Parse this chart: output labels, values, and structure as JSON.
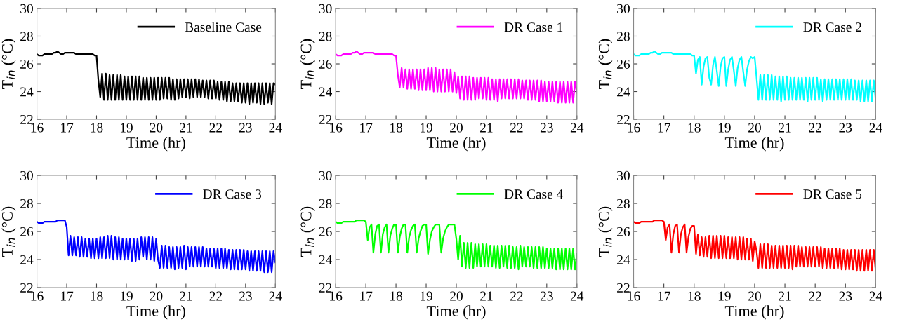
{
  "chart_data": [
    {
      "type": "line",
      "xlabel": "Time (hr)",
      "ylabel": "T$_{in}$ (°C)",
      "xlim": [
        16,
        24
      ],
      "ylim": [
        22,
        30
      ],
      "xticks": [
        16,
        17,
        18,
        19,
        20,
        21,
        22,
        23,
        24
      ],
      "yticks": [
        22,
        24,
        26,
        28,
        30
      ],
      "grid": false,
      "legend": "top right",
      "x": [
        16,
        16.0625,
        16.125,
        16.1875,
        16.25,
        16.3125,
        16.375,
        16.4375,
        16.5,
        16.5625,
        16.625,
        16.6875,
        16.75,
        16.8125,
        16.875,
        16.9375,
        17,
        17.0625,
        17.125,
        17.1875,
        17.25,
        17.3125,
        17.375,
        17.4375,
        17.5,
        17.5625,
        17.625,
        17.6875,
        17.75,
        17.8125,
        17.875,
        17.9375,
        18,
        18.0625,
        18.125,
        18.1875,
        18.25,
        18.3125,
        18.375,
        18.4375,
        18.5,
        18.5625,
        18.625,
        18.6875,
        18.75,
        18.8125,
        18.875,
        18.9375,
        19,
        19.0625,
        19.125,
        19.1875,
        19.25,
        19.3125,
        19.375,
        19.4375,
        19.5,
        19.5625,
        19.625,
        19.6875,
        19.75,
        19.8125,
        19.875,
        19.9375,
        20,
        20.0625,
        20.125,
        20.1875,
        20.25,
        20.3125,
        20.375,
        20.4375,
        20.5,
        20.5625,
        20.625,
        20.6875,
        20.75,
        20.8125,
        20.875,
        20.9375,
        21,
        21.0625,
        21.125,
        21.1875,
        21.25,
        21.3125,
        21.375,
        21.4375,
        21.5,
        21.5625,
        21.625,
        21.6875,
        21.75,
        21.8125,
        21.875,
        21.9375,
        22,
        22.0625,
        22.125,
        22.1875,
        22.25,
        22.3125,
        22.375,
        22.4375,
        22.5,
        22.5625,
        22.625,
        22.6875,
        22.75,
        22.8125,
        22.875,
        22.9375,
        23,
        23.0625,
        23.125,
        23.1875,
        23.25,
        23.3125,
        23.375,
        23.4375,
        23.5,
        23.5625,
        23.625,
        23.6875,
        23.75,
        23.8125,
        23.875,
        23.9375,
        24
      ],
      "series": [
        {
          "name": "Baseline Case",
          "color": "#000000",
          "values": [
            26.7,
            26.6,
            26.6,
            26.6,
            26.7,
            26.7,
            26.7,
            26.7,
            26.7,
            26.8,
            26.8,
            26.9,
            26.8,
            26.7,
            26.7,
            26.8,
            26.8,
            26.8,
            26.8,
            26.8,
            26.8,
            26.7,
            26.7,
            26.7,
            26.7,
            26.7,
            26.7,
            26.7,
            26.7,
            26.7,
            26.7,
            26.6,
            26.6,
            24.8,
            23.6,
            25.3,
            23.4,
            25.3,
            23.4,
            25.2,
            23.4,
            25.2,
            23.4,
            25.2,
            23.4,
            25.2,
            23.4,
            25.1,
            23.4,
            25.1,
            23.4,
            25.1,
            23.4,
            25.1,
            23.4,
            25.1,
            23.4,
            25.0,
            23.4,
            25.0,
            23.4,
            25.0,
            23.4,
            25.0,
            23.4,
            25.0,
            23.4,
            25.0,
            23.5,
            25.0,
            23.5,
            25.0,
            23.4,
            24.9,
            23.4,
            24.9,
            23.5,
            24.9,
            23.6,
            24.9,
            23.6,
            24.9,
            23.5,
            24.9,
            23.6,
            24.9,
            23.6,
            24.9,
            23.6,
            24.8,
            23.6,
            24.8,
            23.5,
            24.8,
            23.5,
            24.8,
            23.5,
            24.7,
            23.4,
            24.7,
            23.4,
            24.7,
            23.3,
            24.7,
            23.3,
            24.6,
            23.3,
            24.6,
            23.3,
            24.6,
            23.2,
            24.6,
            23.2,
            24.6,
            23.1,
            24.6,
            23.2,
            24.6,
            23.2,
            24.6,
            23.1,
            24.6,
            23.1,
            24.6,
            23.2,
            24.6,
            23.1,
            24.6,
            24.5
          ]
        }
      ]
    },
    {
      "type": "line",
      "xlabel": "Time (hr)",
      "ylabel": "T$_{in}$ (°C)",
      "xlim": [
        16,
        24
      ],
      "ylim": [
        22,
        30
      ],
      "xticks": [
        16,
        17,
        18,
        19,
        20,
        21,
        22,
        23,
        24
      ],
      "yticks": [
        22,
        24,
        26,
        28,
        30
      ],
      "grid": false,
      "legend": "top right",
      "x": [
        16,
        16.0625,
        16.125,
        16.1875,
        16.25,
        16.3125,
        16.375,
        16.4375,
        16.5,
        16.5625,
        16.625,
        16.6875,
        16.75,
        16.8125,
        16.875,
        16.9375,
        17,
        17.0625,
        17.125,
        17.1875,
        17.25,
        17.3125,
        17.375,
        17.4375,
        17.5,
        17.5625,
        17.625,
        17.6875,
        17.75,
        17.8125,
        17.875,
        17.9375,
        18,
        18.0625,
        18.125,
        18.1875,
        18.25,
        18.3125,
        18.375,
        18.4375,
        18.5,
        18.5625,
        18.625,
        18.6875,
        18.75,
        18.8125,
        18.875,
        18.9375,
        19,
        19.0625,
        19.125,
        19.1875,
        19.25,
        19.3125,
        19.375,
        19.4375,
        19.5,
        19.5625,
        19.625,
        19.6875,
        19.75,
        19.8125,
        19.875,
        19.9375,
        20,
        20.0625,
        20.125,
        20.1875,
        20.25,
        20.3125,
        20.375,
        20.4375,
        20.5,
        20.5625,
        20.625,
        20.6875,
        20.75,
        20.8125,
        20.875,
        20.9375,
        21,
        21.0625,
        21.125,
        21.1875,
        21.25,
        21.3125,
        21.375,
        21.4375,
        21.5,
        21.5625,
        21.625,
        21.6875,
        21.75,
        21.8125,
        21.875,
        21.9375,
        22,
        22.0625,
        22.125,
        22.1875,
        22.25,
        22.3125,
        22.375,
        22.4375,
        22.5,
        22.5625,
        22.625,
        22.6875,
        22.75,
        22.8125,
        22.875,
        22.9375,
        23,
        23.0625,
        23.125,
        23.1875,
        23.25,
        23.3125,
        23.375,
        23.4375,
        23.5,
        23.5625,
        23.625,
        23.6875,
        23.75,
        23.8125,
        23.875,
        23.9375,
        24
      ],
      "series": [
        {
          "name": "DR Case 1",
          "color": "#ff00ff",
          "values": [
            26.7,
            26.6,
            26.6,
            26.6,
            26.7,
            26.7,
            26.7,
            26.7,
            26.7,
            26.8,
            26.8,
            26.9,
            26.8,
            26.7,
            26.7,
            26.8,
            26.8,
            26.8,
            26.8,
            26.8,
            26.8,
            26.7,
            26.7,
            26.7,
            26.7,
            26.7,
            26.7,
            26.7,
            26.7,
            26.7,
            26.7,
            26.6,
            26.6,
            25.2,
            24.3,
            25.7,
            24.3,
            25.6,
            24.2,
            25.6,
            24.2,
            25.6,
            24.2,
            25.6,
            24.1,
            25.6,
            24.1,
            25.6,
            24.1,
            25.7,
            24.1,
            25.7,
            24.0,
            25.7,
            24.0,
            25.6,
            24.0,
            25.6,
            24.0,
            25.6,
            24.0,
            25.6,
            24.0,
            25.4,
            23.9,
            25.1,
            23.5,
            25.1,
            23.4,
            25.1,
            23.4,
            25.1,
            23.4,
            25.0,
            23.4,
            25.0,
            23.5,
            25.0,
            23.5,
            25.0,
            23.4,
            25.0,
            23.4,
            24.9,
            23.4,
            24.9,
            23.3,
            24.9,
            23.5,
            24.9,
            23.5,
            24.9,
            23.5,
            24.9,
            23.5,
            24.9,
            23.5,
            24.9,
            23.5,
            24.8,
            23.5,
            24.8,
            23.4,
            24.8,
            23.4,
            24.8,
            23.4,
            24.8,
            23.3,
            24.8,
            23.3,
            24.7,
            23.3,
            24.7,
            23.3,
            24.7,
            23.3,
            24.7,
            23.2,
            24.7,
            23.2,
            24.7,
            23.2,
            24.7,
            23.2,
            24.7,
            23.2,
            24.7,
            23.9
          ]
        }
      ]
    },
    {
      "type": "line",
      "xlabel": "Time (hr)",
      "ylabel": "T$_{in}$ (°C)",
      "xlim": [
        16,
        24
      ],
      "ylim": [
        22,
        30
      ],
      "xticks": [
        16,
        17,
        18,
        19,
        20,
        21,
        22,
        23,
        24
      ],
      "yticks": [
        22,
        24,
        26,
        28,
        30
      ],
      "grid": false,
      "legend": "top right",
      "x": [
        16,
        16.0625,
        16.125,
        16.1875,
        16.25,
        16.3125,
        16.375,
        16.4375,
        16.5,
        16.5625,
        16.625,
        16.6875,
        16.75,
        16.8125,
        16.875,
        16.9375,
        17,
        17.0625,
        17.125,
        17.1875,
        17.25,
        17.3125,
        17.375,
        17.4375,
        17.5,
        17.5625,
        17.625,
        17.6875,
        17.75,
        17.8125,
        17.875,
        17.9375,
        18,
        18.0625,
        18.125,
        18.1875,
        18.25,
        18.3125,
        18.375,
        18.4375,
        18.5,
        18.5625,
        18.625,
        18.6875,
        18.75,
        18.8125,
        18.875,
        18.9375,
        19,
        19.0625,
        19.125,
        19.1875,
        19.25,
        19.3125,
        19.375,
        19.4375,
        19.5,
        19.5625,
        19.625,
        19.6875,
        19.75,
        19.8125,
        19.875,
        19.9375,
        20,
        20.0625,
        20.125,
        20.1875,
        20.25,
        20.3125,
        20.375,
        20.4375,
        20.5,
        20.5625,
        20.625,
        20.6875,
        20.75,
        20.8125,
        20.875,
        20.9375,
        21,
        21.0625,
        21.125,
        21.1875,
        21.25,
        21.3125,
        21.375,
        21.4375,
        21.5,
        21.5625,
        21.625,
        21.6875,
        21.75,
        21.8125,
        21.875,
        21.9375,
        22,
        22.0625,
        22.125,
        22.1875,
        22.25,
        22.3125,
        22.375,
        22.4375,
        22.5,
        22.5625,
        22.625,
        22.6875,
        22.75,
        22.8125,
        22.875,
        22.9375,
        23,
        23.0625,
        23.125,
        23.1875,
        23.25,
        23.3125,
        23.375,
        23.4375,
        23.5,
        23.5625,
        23.625,
        23.6875,
        23.75,
        23.8125,
        23.875,
        23.9375,
        24
      ],
      "series": [
        {
          "name": "DR Case 2",
          "color": "#00ffff",
          "values": [
            26.7,
            26.6,
            26.6,
            26.6,
            26.7,
            26.7,
            26.7,
            26.7,
            26.7,
            26.8,
            26.8,
            26.9,
            26.8,
            26.7,
            26.7,
            26.8,
            26.8,
            26.8,
            26.8,
            26.8,
            26.8,
            26.7,
            26.7,
            26.7,
            26.7,
            26.7,
            26.7,
            26.7,
            26.7,
            26.7,
            26.7,
            26.6,
            26.6,
            25.3,
            26.3,
            26.5,
            24.5,
            25.8,
            26.4,
            26.5,
            25.0,
            24.5,
            25.9,
            26.5,
            25.5,
            24.4,
            25.8,
            26.4,
            26.5,
            24.4,
            25.6,
            26.3,
            26.5,
            25.5,
            24.4,
            25.7,
            26.3,
            26.5,
            25.4,
            24.4,
            25.6,
            26.2,
            26.5,
            26.4,
            26.5,
            25.0,
            23.4,
            25.2,
            23.4,
            25.2,
            23.4,
            25.2,
            23.4,
            25.2,
            23.4,
            25.1,
            23.4,
            25.1,
            23.3,
            25.1,
            23.4,
            25.1,
            23.4,
            25.0,
            23.4,
            25.0,
            23.4,
            25.0,
            23.4,
            25.0,
            23.4,
            25.0,
            23.3,
            25.0,
            23.4,
            25.0,
            23.4,
            25.0,
            23.4,
            24.9,
            23.3,
            24.9,
            23.4,
            24.9,
            23.4,
            24.9,
            23.4,
            24.9,
            23.4,
            24.9,
            23.4,
            24.9,
            23.4,
            24.9,
            23.4,
            24.9,
            23.4,
            24.8,
            23.4,
            24.8,
            23.3,
            24.8,
            23.3,
            24.8,
            23.3,
            24.8,
            23.3,
            24.8,
            23.4
          ]
        }
      ]
    },
    {
      "type": "line",
      "xlabel": "Time (hr)",
      "ylabel": "T$_{in}$ (°C)",
      "xlim": [
        16,
        24
      ],
      "ylim": [
        22,
        30
      ],
      "xticks": [
        16,
        17,
        18,
        19,
        20,
        21,
        22,
        23,
        24
      ],
      "yticks": [
        22,
        24,
        26,
        28,
        30
      ],
      "grid": false,
      "legend": "top right",
      "x": [
        16,
        16.0625,
        16.125,
        16.1875,
        16.25,
        16.3125,
        16.375,
        16.4375,
        16.5,
        16.5625,
        16.625,
        16.6875,
        16.75,
        16.8125,
        16.875,
        16.9375,
        17,
        17.0625,
        17.125,
        17.1875,
        17.25,
        17.3125,
        17.375,
        17.4375,
        17.5,
        17.5625,
        17.625,
        17.6875,
        17.75,
        17.8125,
        17.875,
        17.9375,
        18,
        18.0625,
        18.125,
        18.1875,
        18.25,
        18.3125,
        18.375,
        18.4375,
        18.5,
        18.5625,
        18.625,
        18.6875,
        18.75,
        18.8125,
        18.875,
        18.9375,
        19,
        19.0625,
        19.125,
        19.1875,
        19.25,
        19.3125,
        19.375,
        19.4375,
        19.5,
        19.5625,
        19.625,
        19.6875,
        19.75,
        19.8125,
        19.875,
        19.9375,
        20,
        20.0625,
        20.125,
        20.1875,
        20.25,
        20.3125,
        20.375,
        20.4375,
        20.5,
        20.5625,
        20.625,
        20.6875,
        20.75,
        20.8125,
        20.875,
        20.9375,
        21,
        21.0625,
        21.125,
        21.1875,
        21.25,
        21.3125,
        21.375,
        21.4375,
        21.5,
        21.5625,
        21.625,
        21.6875,
        21.75,
        21.8125,
        21.875,
        21.9375,
        22,
        22.0625,
        22.125,
        22.1875,
        22.25,
        22.3125,
        22.375,
        22.4375,
        22.5,
        22.5625,
        22.625,
        22.6875,
        22.75,
        22.8125,
        22.875,
        22.9375,
        23,
        23.0625,
        23.125,
        23.1875,
        23.25,
        23.3125,
        23.375,
        23.4375,
        23.5,
        23.5625,
        23.625,
        23.6875,
        23.75,
        23.8125,
        23.875,
        23.9375,
        24
      ],
      "series": [
        {
          "name": "DR Case 3",
          "color": "#0000ff",
          "values": [
            26.7,
            26.6,
            26.6,
            26.6,
            26.7,
            26.7,
            26.7,
            26.7,
            26.7,
            26.7,
            26.7,
            26.8,
            26.8,
            26.8,
            26.8,
            26.8,
            26.3,
            24.3,
            25.7,
            24.3,
            25.6,
            24.3,
            25.6,
            24.2,
            25.6,
            24.2,
            25.5,
            24.2,
            25.5,
            24.1,
            25.5,
            24.1,
            25.5,
            24.1,
            25.6,
            24.1,
            25.6,
            24.1,
            25.7,
            24.1,
            25.7,
            24.0,
            25.6,
            24.0,
            25.6,
            24.0,
            25.5,
            24.0,
            25.5,
            24.0,
            25.5,
            23.9,
            25.5,
            23.9,
            25.5,
            24.0,
            25.6,
            24.2,
            25.6,
            24.0,
            25.6,
            24.0,
            25.6,
            23.9,
            25.5,
            24.0,
            23.4,
            25.0,
            23.4,
            25.0,
            23.4,
            24.9,
            23.4,
            24.9,
            23.3,
            24.9,
            23.4,
            24.9,
            23.4,
            25.0,
            23.3,
            24.9,
            23.5,
            24.9,
            23.5,
            24.9,
            23.5,
            24.9,
            23.5,
            24.9,
            23.5,
            24.8,
            23.5,
            24.8,
            23.5,
            24.8,
            23.4,
            24.8,
            23.4,
            24.8,
            23.4,
            24.8,
            23.4,
            24.7,
            23.3,
            24.7,
            23.3,
            24.7,
            23.3,
            24.7,
            23.3,
            24.7,
            23.3,
            24.6,
            23.2,
            24.6,
            23.2,
            24.6,
            23.2,
            24.6,
            23.2,
            24.6,
            23.1,
            24.6,
            23.1,
            24.6,
            23.1,
            24.6,
            23.8
          ]
        }
      ]
    },
    {
      "type": "line",
      "xlabel": "Time (hr)",
      "ylabel": "T$_{in}$ (°C)",
      "xlim": [
        16,
        24
      ],
      "ylim": [
        22,
        30
      ],
      "xticks": [
        16,
        17,
        18,
        19,
        20,
        21,
        22,
        23,
        24
      ],
      "yticks": [
        22,
        24,
        26,
        28,
        30
      ],
      "grid": false,
      "legend": "top right",
      "x": [
        16,
        16.0625,
        16.125,
        16.1875,
        16.25,
        16.3125,
        16.375,
        16.4375,
        16.5,
        16.5625,
        16.625,
        16.6875,
        16.75,
        16.8125,
        16.875,
        16.9375,
        17,
        17.0625,
        17.125,
        17.1875,
        17.25,
        17.3125,
        17.375,
        17.4375,
        17.5,
        17.5625,
        17.625,
        17.6875,
        17.75,
        17.8125,
        17.875,
        17.9375,
        18,
        18.0625,
        18.125,
        18.1875,
        18.25,
        18.3125,
        18.375,
        18.4375,
        18.5,
        18.5625,
        18.625,
        18.6875,
        18.75,
        18.8125,
        18.875,
        18.9375,
        19,
        19.0625,
        19.125,
        19.1875,
        19.25,
        19.3125,
        19.375,
        19.4375,
        19.5,
        19.5625,
        19.625,
        19.6875,
        19.75,
        19.8125,
        19.875,
        19.9375,
        20,
        20.0625,
        20.125,
        20.1875,
        20.25,
        20.3125,
        20.375,
        20.4375,
        20.5,
        20.5625,
        20.625,
        20.6875,
        20.75,
        20.8125,
        20.875,
        20.9375,
        21,
        21.0625,
        21.125,
        21.1875,
        21.25,
        21.3125,
        21.375,
        21.4375,
        21.5,
        21.5625,
        21.625,
        21.6875,
        21.75,
        21.8125,
        21.875,
        21.9375,
        22,
        22.0625,
        22.125,
        22.1875,
        22.25,
        22.3125,
        22.375,
        22.4375,
        22.5,
        22.5625,
        22.625,
        22.6875,
        22.75,
        22.8125,
        22.875,
        22.9375,
        23,
        23.0625,
        23.125,
        23.1875,
        23.25,
        23.3125,
        23.375,
        23.4375,
        23.5,
        23.5625,
        23.625,
        23.6875,
        23.75,
        23.8125,
        23.875,
        23.9375,
        24
      ],
      "series": [
        {
          "name": "DR Case 4",
          "color": "#00ff00",
          "values": [
            26.7,
            26.6,
            26.6,
            26.6,
            26.7,
            26.7,
            26.7,
            26.7,
            26.7,
            26.7,
            26.7,
            26.8,
            26.8,
            26.8,
            26.8,
            26.8,
            26.7,
            25.4,
            26.3,
            26.5,
            24.5,
            25.8,
            26.4,
            26.5,
            24.5,
            25.8,
            26.3,
            26.5,
            24.5,
            25.7,
            26.2,
            26.5,
            26.5,
            24.5,
            25.6,
            26.2,
            26.5,
            26.5,
            24.5,
            25.6,
            26.1,
            26.4,
            26.5,
            24.5,
            25.5,
            26.0,
            26.4,
            26.5,
            26.5,
            24.4,
            25.4,
            26.0,
            26.3,
            26.5,
            26.5,
            26.5,
            24.5,
            25.5,
            26.0,
            26.3,
            26.5,
            26.5,
            26.5,
            26.5,
            25.5,
            24.0,
            25.7,
            23.5,
            25.2,
            23.4,
            25.2,
            23.4,
            25.2,
            23.4,
            25.1,
            23.5,
            25.1,
            23.5,
            25.1,
            23.5,
            25.1,
            23.5,
            25.0,
            23.5,
            25.0,
            23.4,
            25.0,
            23.4,
            25.0,
            23.5,
            25.0,
            23.4,
            25.0,
            23.4,
            24.9,
            23.4,
            24.9,
            23.3,
            25.0,
            23.5,
            24.9,
            23.5,
            24.9,
            23.5,
            24.9,
            23.4,
            24.9,
            23.4,
            24.9,
            23.4,
            24.9,
            23.4,
            24.8,
            23.4,
            24.8,
            23.4,
            24.8,
            23.3,
            24.8,
            23.3,
            24.8,
            23.3,
            24.8,
            23.3,
            24.8,
            23.3,
            24.8,
            23.3,
            24.4
          ]
        }
      ]
    },
    {
      "type": "line",
      "xlabel": "Time (hr)",
      "ylabel": "T$_{in}$ (°C)",
      "xlim": [
        16,
        24
      ],
      "ylim": [
        22,
        30
      ],
      "xticks": [
        16,
        17,
        18,
        19,
        20,
        21,
        22,
        23,
        24
      ],
      "yticks": [
        22,
        24,
        26,
        28,
        30
      ],
      "grid": false,
      "legend": "top right",
      "x": [
        16,
        16.0625,
        16.125,
        16.1875,
        16.25,
        16.3125,
        16.375,
        16.4375,
        16.5,
        16.5625,
        16.625,
        16.6875,
        16.75,
        16.8125,
        16.875,
        16.9375,
        17,
        17.0625,
        17.125,
        17.1875,
        17.25,
        17.3125,
        17.375,
        17.4375,
        17.5,
        17.5625,
        17.625,
        17.6875,
        17.75,
        17.8125,
        17.875,
        17.9375,
        18,
        18.0625,
        18.125,
        18.1875,
        18.25,
        18.3125,
        18.375,
        18.4375,
        18.5,
        18.5625,
        18.625,
        18.6875,
        18.75,
        18.8125,
        18.875,
        18.9375,
        19,
        19.0625,
        19.125,
        19.1875,
        19.25,
        19.3125,
        19.375,
        19.4375,
        19.5,
        19.5625,
        19.625,
        19.6875,
        19.75,
        19.8125,
        19.875,
        19.9375,
        20,
        20.0625,
        20.125,
        20.1875,
        20.25,
        20.3125,
        20.375,
        20.4375,
        20.5,
        20.5625,
        20.625,
        20.6875,
        20.75,
        20.8125,
        20.875,
        20.9375,
        21,
        21.0625,
        21.125,
        21.1875,
        21.25,
        21.3125,
        21.375,
        21.4375,
        21.5,
        21.5625,
        21.625,
        21.6875,
        21.75,
        21.8125,
        21.875,
        21.9375,
        22,
        22.0625,
        22.125,
        22.1875,
        22.25,
        22.3125,
        22.375,
        22.4375,
        22.5,
        22.5625,
        22.625,
        22.6875,
        22.75,
        22.8125,
        22.875,
        22.9375,
        23,
        23.0625,
        23.125,
        23.1875,
        23.25,
        23.3125,
        23.375,
        23.4375,
        23.5,
        23.5625,
        23.625,
        23.6875,
        23.75,
        23.8125,
        23.875,
        23.9375,
        24
      ],
      "series": [
        {
          "name": "DR Case 5",
          "color": "#ff0000",
          "values": [
            26.7,
            26.6,
            26.6,
            26.6,
            26.7,
            26.7,
            26.7,
            26.7,
            26.7,
            26.7,
            26.7,
            26.8,
            26.8,
            26.8,
            26.8,
            26.8,
            26.7,
            25.4,
            26.3,
            26.5,
            24.5,
            25.8,
            26.4,
            26.5,
            24.5,
            25.8,
            26.3,
            26.5,
            24.5,
            25.6,
            26.2,
            26.4,
            26.4,
            24.4,
            25.8,
            24.3,
            25.6,
            24.2,
            25.6,
            24.2,
            25.7,
            24.1,
            25.7,
            24.1,
            25.7,
            24.1,
            25.7,
            24.1,
            25.7,
            24.1,
            25.6,
            24.1,
            25.6,
            24.1,
            25.6,
            24.0,
            25.6,
            24.0,
            25.6,
            24.0,
            25.5,
            24.0,
            25.5,
            23.9,
            25.3,
            24.6,
            23.4,
            25.1,
            23.4,
            25.1,
            23.4,
            25.1,
            23.4,
            25.0,
            23.4,
            25.0,
            23.4,
            25.0,
            23.4,
            25.0,
            23.4,
            25.0,
            23.4,
            25.0,
            23.3,
            25.0,
            23.5,
            25.0,
            23.5,
            24.9,
            23.5,
            24.9,
            23.5,
            24.9,
            23.5,
            24.9,
            23.5,
            24.9,
            23.5,
            24.9,
            23.4,
            24.8,
            23.4,
            24.8,
            23.4,
            24.8,
            23.4,
            24.8,
            23.4,
            24.8,
            23.3,
            24.7,
            23.3,
            24.7,
            23.3,
            24.7,
            23.3,
            24.7,
            23.2,
            24.7,
            23.2,
            24.7,
            23.2,
            24.7,
            23.2,
            24.7,
            23.2,
            24.7,
            23.2
          ]
        }
      ]
    }
  ]
}
